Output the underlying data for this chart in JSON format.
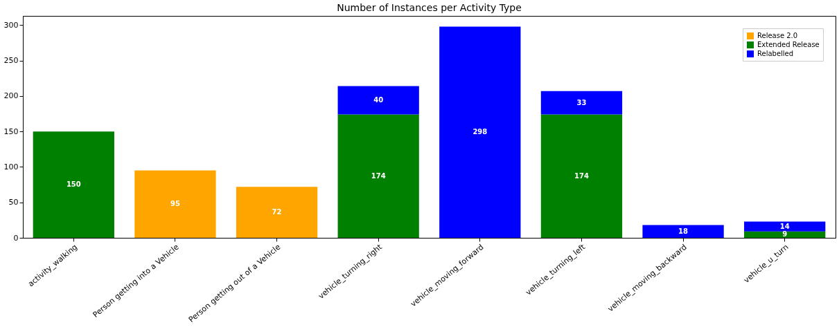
{
  "chart_data": {
    "type": "bar",
    "title": "Number of Instances per Activity Type",
    "categories": [
      "activity_walking",
      "Person getting into a Vehicle",
      "Person getting out of a Vehicle",
      "vehicle_turning_right",
      "vehicle_moving_forward",
      "vehicle_turning_left",
      "vehicle_moving_backward",
      "vehicle_u_turn"
    ],
    "series": [
      {
        "name": "Release 2.0",
        "color": "#ffa500",
        "values": [
          null,
          95,
          72,
          null,
          null,
          null,
          null,
          null
        ]
      },
      {
        "name": "Extended Release",
        "color": "#008000",
        "values": [
          150,
          null,
          null,
          174,
          null,
          174,
          null,
          9
        ]
      },
      {
        "name": "Relabelled",
        "color": "#0000ff",
        "values": [
          null,
          null,
          null,
          40,
          298,
          33,
          18,
          14
        ]
      }
    ],
    "stacked": true,
    "data_labels": true,
    "ylim": [
      0,
      313
    ],
    "yticks": [
      0,
      50,
      100,
      150,
      200,
      250,
      300
    ],
    "grid": false,
    "legend": "top right"
  }
}
